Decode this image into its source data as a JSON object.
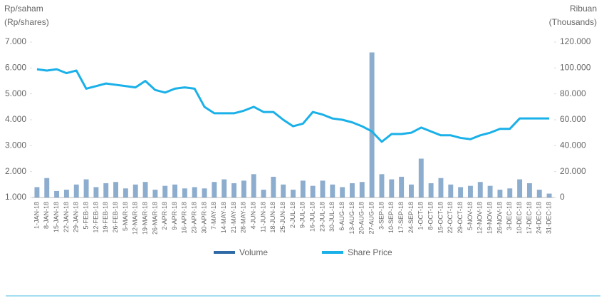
{
  "chart_data": {
    "type": "bar-line",
    "y_axis_label": "Rp/saham",
    "y_axis_label_en": "(Rp/shares)",
    "y2_axis_label": "Ribuan",
    "y2_axis_label_en": "(Thousands)",
    "categories": [
      "1-JAN-18",
      "8-JAN-18",
      "15-JAN-18",
      "22-JAN-18",
      "29-JAN-18",
      "5-FEB-18",
      "12-FEB-18",
      "19-FEB-18",
      "26-FEB-18",
      "5-MAR-18",
      "12-MAR-18",
      "19-MAR-18",
      "26-MAR-18",
      "2-APR-18",
      "9-APR-18",
      "16-APR-18",
      "23-APR-18",
      "30-APR-18",
      "7-MAY-18",
      "14-MAY-18",
      "21-MAY-18",
      "28-MAY-18",
      "4-JUN-18",
      "11-JUN-18",
      "18-JUN-18",
      "25-JUN-18",
      "2-JUL-18",
      "9-JUL-18",
      "16-JUL-18",
      "23-JUL-18",
      "30-JUL-18",
      "6-AUG-18",
      "13-AUG-18",
      "20-AUG-18",
      "27-AUG-18",
      "3-SEP-18",
      "10-SEP-18",
      "17-SEP-18",
      "24-SEP-18",
      "1-OCT-18",
      "8-OCT-18",
      "15-OCT-18",
      "22-OCT-18",
      "29-OCT-18",
      "5-NOV-18",
      "12-NOV-18",
      "19-NOV-18",
      "26-NOV-18",
      "3-DEC-18",
      "10-DEC-18",
      "17-DEC-18",
      "24-DEC-18",
      "31-DEC-18"
    ],
    "series": [
      {
        "name": "Volume",
        "type": "bar",
        "axis": "y2",
        "color": "#2f6aa6",
        "values": [
          8000,
          15000,
          5000,
          6000,
          10000,
          14000,
          8000,
          11000,
          12000,
          7000,
          10000,
          12000,
          6000,
          9000,
          10000,
          7000,
          8000,
          7000,
          12000,
          14000,
          11000,
          13000,
          18000,
          6000,
          16000,
          10000,
          6000,
          13000,
          9000,
          13000,
          10000,
          8000,
          11000,
          12000,
          112000,
          18000,
          14000,
          16000,
          10000,
          30000,
          11000,
          15000,
          10000,
          8000,
          9000,
          12000,
          9000,
          6000,
          7000,
          14000,
          11000,
          6000,
          3000
        ]
      },
      {
        "name": "Share Price",
        "type": "line",
        "axis": "y",
        "color": "#1ab0e8",
        "values": [
          5950,
          5900,
          5950,
          5800,
          5900,
          5200,
          5300,
          5400,
          5350,
          5300,
          5250,
          5500,
          5150,
          5050,
          5200,
          5250,
          5200,
          4500,
          4250,
          4250,
          4250,
          4350,
          4500,
          4300,
          4300,
          4000,
          3750,
          3850,
          4300,
          4200,
          4050,
          4000,
          3900,
          3750,
          3550,
          3150,
          3450,
          3450,
          3500,
          3700,
          3550,
          3400,
          3400,
          3300,
          3250,
          3400,
          3500,
          3650,
          3650,
          4050,
          4050,
          4050,
          4050
        ]
      }
    ],
    "ylim": [
      1000,
      7000
    ],
    "yticks": [
      {
        "value": 1000,
        "label": "1.000"
      },
      {
        "value": 2000,
        "label": "2.000"
      },
      {
        "value": 3000,
        "label": "3.000"
      },
      {
        "value": 4000,
        "label": "4.000"
      },
      {
        "value": 5000,
        "label": "5.000"
      },
      {
        "value": 6000,
        "label": "6.000"
      },
      {
        "value": 7000,
        "label": "7.000"
      }
    ],
    "y2lim": [
      0,
      120000
    ],
    "y2ticks": [
      0,
      {
        "value": 20000,
        "label": "20.000"
      },
      {
        "value": 40000,
        "label": "40.000"
      },
      {
        "value": 60000,
        "label": "60.000"
      },
      {
        "value": 80000,
        "label": "80.000"
      },
      {
        "value": 100000,
        "label": "100.000"
      },
      {
        "value": 120000,
        "label": "120.000"
      }
    ],
    "legend": "bottom"
  }
}
